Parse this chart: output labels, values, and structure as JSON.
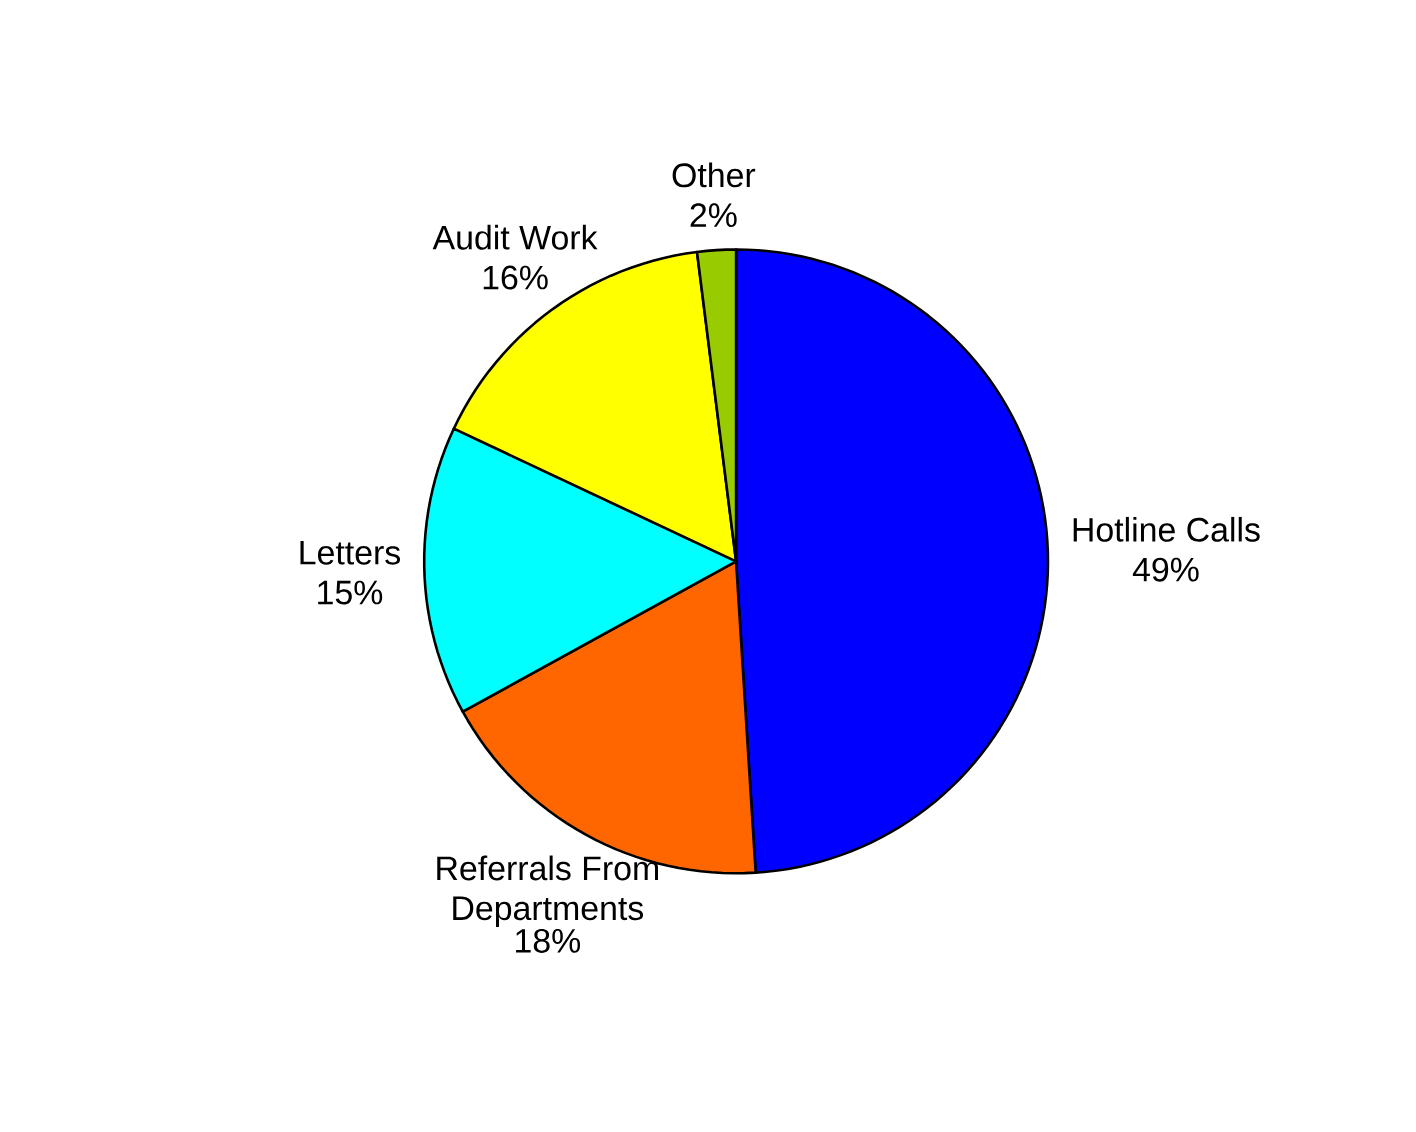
{
  "chart_data": {
    "type": "pie",
    "categories": [
      "Hotline Calls",
      "Referrals From Departments",
      "Letters",
      "Audit Work",
      "Other"
    ],
    "values": [
      49,
      18,
      15,
      16,
      2
    ],
    "value_labels": [
      "49%",
      "18%",
      "15%",
      "16%",
      "2%"
    ],
    "colors": [
      "#0000ff",
      "#ff6600",
      "#00ffff",
      "#ffff00",
      "#99cc00"
    ]
  }
}
